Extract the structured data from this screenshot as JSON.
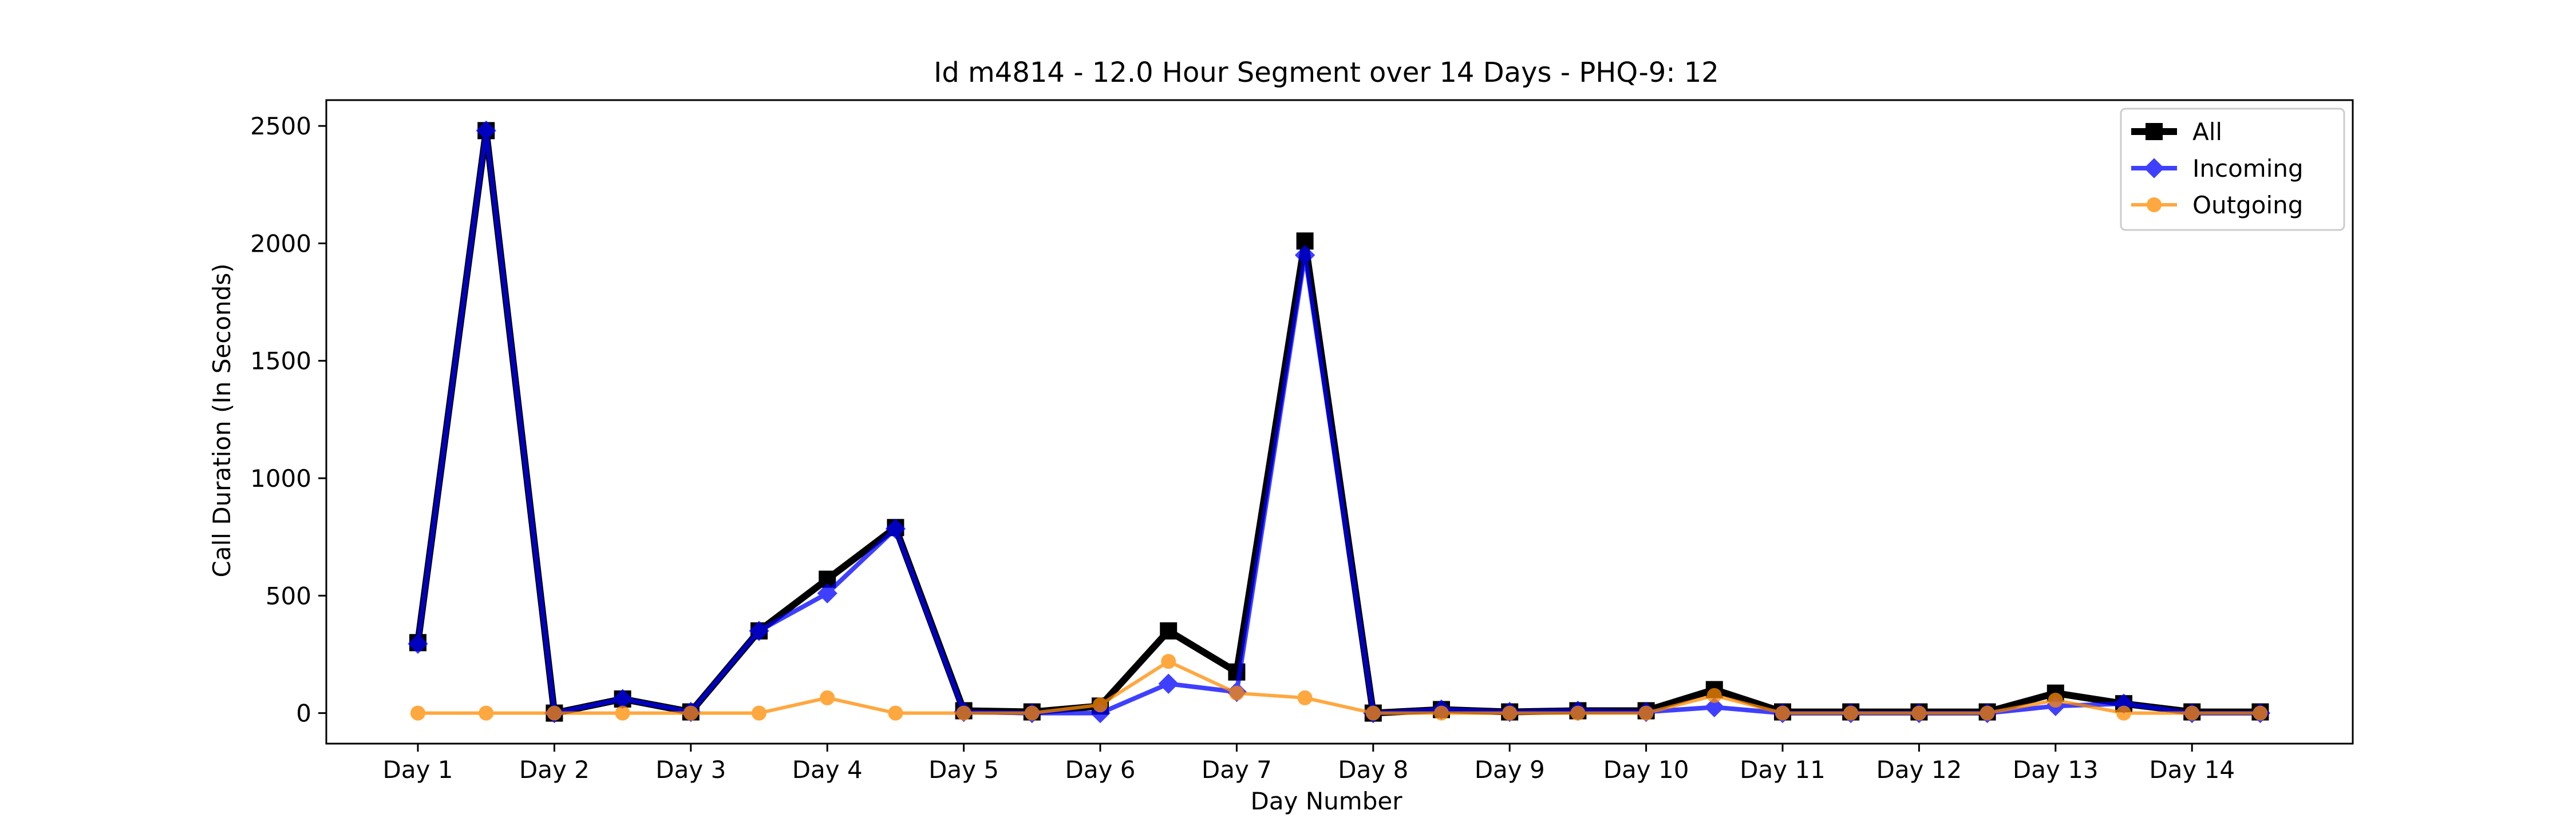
{
  "chart_data": {
    "type": "line",
    "title": "Id m4814 - 12.0 Hour Segment over 14 Days - PHQ-9: 12",
    "xlabel": "Day Number",
    "ylabel": "Call Duration (In Seconds)",
    "x_tick_labels": [
      "Day 1",
      "Day 2",
      "Day 3",
      "Day 4",
      "Day 5",
      "Day 6",
      "Day 7",
      "Day 8",
      "Day 9",
      "Day 10",
      "Day 11",
      "Day 12",
      "Day 13",
      "Day 14"
    ],
    "y_ticks": [
      0,
      500,
      1000,
      1500,
      2000,
      2500
    ],
    "ylim": [
      -130,
      2610
    ],
    "legend_position": "top-right",
    "series": [
      {
        "name": "All",
        "color": "#000000",
        "marker": "square",
        "values": [
          300,
          2480,
          0,
          60,
          5,
          350,
          570,
          790,
          10,
          5,
          30,
          350,
          175,
          2010,
          0,
          15,
          5,
          10,
          10,
          100,
          5,
          5,
          5,
          5,
          85,
          40,
          5,
          5
        ]
      },
      {
        "name": "Incoming",
        "color": "#0000ff",
        "marker": "diamond",
        "values": [
          295,
          2480,
          0,
          60,
          5,
          350,
          510,
          785,
          5,
          0,
          0,
          125,
          90,
          1950,
          0,
          15,
          5,
          10,
          5,
          25,
          0,
          0,
          0,
          0,
          30,
          40,
          0,
          0
        ]
      },
      {
        "name": "Outgoing",
        "color": "#ff8c00",
        "marker": "circle",
        "values": [
          0,
          0,
          0,
          0,
          0,
          0,
          65,
          0,
          0,
          0,
          35,
          220,
          85,
          65,
          0,
          0,
          0,
          0,
          0,
          75,
          0,
          0,
          0,
          0,
          55,
          0,
          0,
          0
        ]
      }
    ]
  }
}
